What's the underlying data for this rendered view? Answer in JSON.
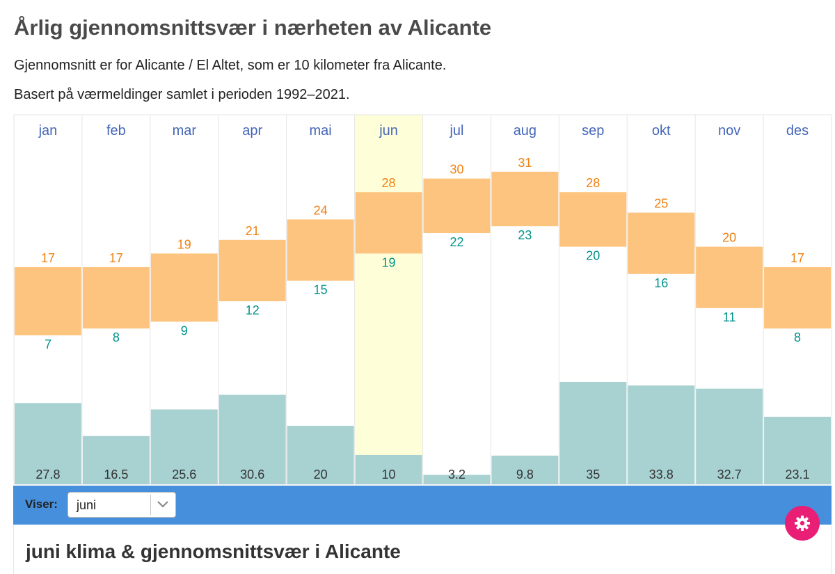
{
  "header": {
    "title": "Årlig gjennomsnittsvær i nærheten av Alicante",
    "subtitle1": "Gjennomsnitt er for Alicante / El Altet, som er 10 kilometer fra Alicante.",
    "subtitle2": "Basert på værmeldinger samlet i perioden 1992–2021."
  },
  "chart_data": {
    "type": "bar",
    "categories": [
      "jan",
      "feb",
      "mar",
      "apr",
      "mai",
      "jun",
      "jul",
      "aug",
      "sep",
      "okt",
      "nov",
      "des"
    ],
    "series": [
      {
        "values": [
          17,
          17,
          19,
          21,
          24,
          28,
          30,
          31,
          28,
          25,
          20,
          17
        ]
      },
      {
        "values": [
          7,
          8,
          9,
          12,
          15,
          19,
          22,
          23,
          20,
          16,
          11,
          8
        ]
      },
      {
        "values": [
          27.8,
          16.5,
          25.6,
          30.6,
          20,
          10,
          3.2,
          9.8,
          35,
          33.8,
          32.7,
          23.1
        ]
      }
    ],
    "highlighted_category": "jun",
    "colors": {
      "temp_band": "#fdc47f",
      "precip": "#a8d1d1",
      "highlight": "#fefed8",
      "high_text": "#f08010",
      "low_text": "#00928a",
      "month_text": "#4466b8"
    }
  },
  "toolbar": {
    "label": "Viser:",
    "selected": "juni",
    "background": "#468fdc"
  },
  "settings": {
    "icon": "gear-icon",
    "color": "#e91e75"
  },
  "section": {
    "title": "juni klima & gjennomsnittsvær i Alicante"
  }
}
